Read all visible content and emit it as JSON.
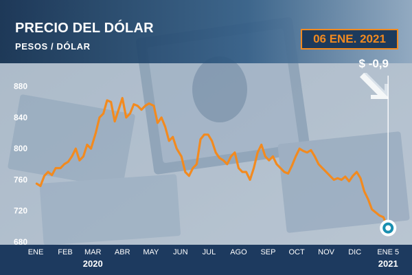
{
  "header": {
    "title": "PRECIO DEL DÓLAR",
    "subtitle": "PESOS / DÓLAR",
    "date": "06 ENE. 2021",
    "change": "$ -0,9"
  },
  "colors": {
    "line": "#f28a1f",
    "badge_bg": "#1c3a5c",
    "footer": "#1d3a5f",
    "endpoint": "#1a8fb0"
  },
  "icons": {
    "trend": "arrow-down-right-icon"
  },
  "chart_data": {
    "type": "line",
    "title": "PRECIO DEL DÓLAR",
    "ylabel": "PESOS / DÓLAR",
    "ylim": [
      680,
      900
    ],
    "yticks": [
      680,
      720,
      760,
      800,
      840,
      880
    ],
    "xlim": [
      "2020-01-01",
      "2021-01-07"
    ],
    "xtick_labels": [
      "ENE",
      "FEB",
      "MAR",
      "ABR",
      "MAY",
      "JUN",
      "JUL",
      "AGO",
      "SEP",
      "OCT",
      "NOV",
      "DIC",
      "ENE 5"
    ],
    "xtick_dates": [
      "2020-01-01",
      "2020-02-01",
      "2020-03-01",
      "2020-04-01",
      "2020-05-01",
      "2020-06-01",
      "2020-07-01",
      "2020-08-01",
      "2020-09-01",
      "2020-10-01",
      "2020-11-01",
      "2020-12-01",
      "2021-01-05"
    ],
    "year_labels": [
      {
        "label": "2020",
        "date": "2020-03-01"
      },
      {
        "label": "2021",
        "date": "2021-01-05"
      }
    ],
    "series": [
      {
        "values": [
          [
            "2020-01-02",
            755
          ],
          [
            "2020-01-06",
            752
          ],
          [
            "2020-01-10",
            765
          ],
          [
            "2020-01-14",
            770
          ],
          [
            "2020-01-18",
            766
          ],
          [
            "2020-01-22",
            775
          ],
          [
            "2020-01-27",
            775
          ],
          [
            "2020-01-31",
            780
          ],
          [
            "2020-02-04",
            783
          ],
          [
            "2020-02-08",
            790
          ],
          [
            "2020-02-12",
            800
          ],
          [
            "2020-02-16",
            785
          ],
          [
            "2020-02-20",
            790
          ],
          [
            "2020-02-24",
            805
          ],
          [
            "2020-02-28",
            800
          ],
          [
            "2020-03-04",
            820
          ],
          [
            "2020-03-08",
            840
          ],
          [
            "2020-03-12",
            845
          ],
          [
            "2020-03-16",
            862
          ],
          [
            "2020-03-20",
            860
          ],
          [
            "2020-03-24",
            835
          ],
          [
            "2020-03-28",
            850
          ],
          [
            "2020-04-01",
            865
          ],
          [
            "2020-04-05",
            840
          ],
          [
            "2020-04-09",
            845
          ],
          [
            "2020-04-13",
            857
          ],
          [
            "2020-04-17",
            855
          ],
          [
            "2020-04-21",
            850
          ],
          [
            "2020-04-25",
            855
          ],
          [
            "2020-04-29",
            858
          ],
          [
            "2020-05-04",
            855
          ],
          [
            "2020-05-08",
            833
          ],
          [
            "2020-05-12",
            840
          ],
          [
            "2020-05-16",
            828
          ],
          [
            "2020-05-20",
            810
          ],
          [
            "2020-05-24",
            815
          ],
          [
            "2020-05-28",
            800
          ],
          [
            "2020-06-02",
            790
          ],
          [
            "2020-06-06",
            770
          ],
          [
            "2020-06-10",
            765
          ],
          [
            "2020-06-14",
            775
          ],
          [
            "2020-06-18",
            780
          ],
          [
            "2020-06-22",
            812
          ],
          [
            "2020-06-26",
            818
          ],
          [
            "2020-06-30",
            818
          ],
          [
            "2020-07-04",
            810
          ],
          [
            "2020-07-08",
            795
          ],
          [
            "2020-07-12",
            788
          ],
          [
            "2020-07-16",
            785
          ],
          [
            "2020-07-20",
            780
          ],
          [
            "2020-07-24",
            790
          ],
          [
            "2020-07-28",
            795
          ],
          [
            "2020-08-01",
            775
          ],
          [
            "2020-08-05",
            770
          ],
          [
            "2020-08-09",
            770
          ],
          [
            "2020-08-13",
            760
          ],
          [
            "2020-08-17",
            775
          ],
          [
            "2020-08-21",
            795
          ],
          [
            "2020-08-25",
            805
          ],
          [
            "2020-08-29",
            790
          ],
          [
            "2020-09-02",
            785
          ],
          [
            "2020-09-06",
            790
          ],
          [
            "2020-09-10",
            780
          ],
          [
            "2020-09-14",
            775
          ],
          [
            "2020-09-18",
            770
          ],
          [
            "2020-09-22",
            768
          ],
          [
            "2020-09-26",
            778
          ],
          [
            "2020-09-30",
            790
          ],
          [
            "2020-10-04",
            800
          ],
          [
            "2020-10-08",
            797
          ],
          [
            "2020-10-12",
            795
          ],
          [
            "2020-10-16",
            798
          ],
          [
            "2020-10-20",
            790
          ],
          [
            "2020-10-24",
            780
          ],
          [
            "2020-10-28",
            775
          ],
          [
            "2020-11-01",
            770
          ],
          [
            "2020-11-05",
            765
          ],
          [
            "2020-11-09",
            760
          ],
          [
            "2020-11-13",
            762
          ],
          [
            "2020-11-17",
            760
          ],
          [
            "2020-11-21",
            764
          ],
          [
            "2020-11-25",
            758
          ],
          [
            "2020-11-29",
            765
          ],
          [
            "2020-12-03",
            770
          ],
          [
            "2020-12-07",
            762
          ],
          [
            "2020-12-11",
            745
          ],
          [
            "2020-12-15",
            735
          ],
          [
            "2020-12-19",
            722
          ],
          [
            "2020-12-23",
            718
          ],
          [
            "2020-12-27",
            714
          ],
          [
            "2020-12-31",
            712
          ],
          [
            "2021-01-05",
            698
          ]
        ]
      }
    ],
    "grid": false,
    "legend": "none"
  }
}
